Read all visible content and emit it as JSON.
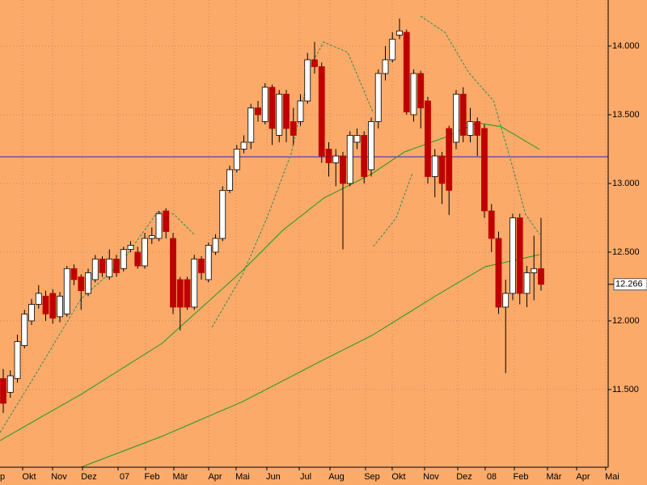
{
  "chart_data": {
    "type": "candlestick",
    "background": "#fbaa6a",
    "grid": true,
    "xlim": [
      -0.46,
      85.49
    ],
    "ylim": [
      10935,
      14335
    ],
    "yticks": [
      {
        "value": 11500,
        "label": "11.500"
      },
      {
        "value": 12000,
        "label": "12.000"
      },
      {
        "value": 12500,
        "label": "12.500"
      },
      {
        "value": 13000,
        "label": "13.000"
      },
      {
        "value": 13500,
        "label": "13.500"
      },
      {
        "value": 14000,
        "label": "14.000"
      }
    ],
    "xticks": [
      {
        "value": -1.03,
        "label": "p"
      },
      {
        "value": 2.74,
        "label": "Okt"
      },
      {
        "value": 6.97,
        "label": "Nov"
      },
      {
        "value": 11.2,
        "label": "Dez"
      },
      {
        "value": 16.23,
        "label": "07"
      },
      {
        "value": 20.11,
        "label": "Feb"
      },
      {
        "value": 24.11,
        "label": "Mär"
      },
      {
        "value": 29.03,
        "label": "Apr"
      },
      {
        "value": 32.91,
        "label": "Mai"
      },
      {
        "value": 37.25,
        "label": "Jun"
      },
      {
        "value": 41.83,
        "label": "Jul"
      },
      {
        "value": 46.17,
        "label": "Aug"
      },
      {
        "value": 51.2,
        "label": "Sep"
      },
      {
        "value": 54.97,
        "label": "Okt"
      },
      {
        "value": 59.54,
        "label": "Nov"
      },
      {
        "value": 64.23,
        "label": "Dez"
      },
      {
        "value": 68.11,
        "label": "08"
      },
      {
        "value": 72.23,
        "label": "Feb"
      },
      {
        "value": 76.91,
        "label": "Mär"
      },
      {
        "value": 81.03,
        "label": "Apr"
      },
      {
        "value": 85.14,
        "label": "Mai"
      }
    ],
    "hline": {
      "value": 13194,
      "color": "#2a2ab8"
    },
    "last_price": {
      "value": 12266,
      "label": "12.266"
    },
    "candles": {
      "up_color": "#ffffff",
      "down_color": "#c00000",
      "x": [
        0,
        1,
        2,
        3,
        4,
        5,
        6,
        7,
        8,
        9,
        10,
        11,
        12,
        13,
        14,
        15,
        16,
        17,
        18,
        19,
        20,
        21,
        22,
        23,
        24,
        25,
        26,
        27,
        28,
        29,
        30,
        31,
        32,
        33,
        34,
        35,
        36,
        37,
        38,
        39,
        40,
        41,
        42,
        43,
        44,
        45,
        46,
        47,
        48,
        49,
        50,
        51,
        52,
        53,
        54,
        55,
        56,
        57,
        58,
        59,
        60,
        61,
        62,
        63,
        64,
        65,
        66,
        67,
        68,
        69,
        70,
        71,
        72,
        73,
        74,
        75,
        76
      ],
      "open": [
        11580,
        11480,
        11580,
        11820,
        12000,
        12120,
        12180,
        12200,
        12030,
        12050,
        12380,
        12320,
        12200,
        12300,
        12450,
        12320,
        12450,
        12380,
        12520,
        12500,
        12400,
        12600,
        12600,
        12800,
        12600,
        12300,
        12300,
        12100,
        12450,
        12300,
        12500,
        12600,
        12950,
        13100,
        13250,
        13300,
        13550,
        13450,
        13700,
        13350,
        13650,
        13450,
        13450,
        13600,
        13900,
        13850,
        13250,
        13150,
        13200,
        13000,
        13300,
        13350,
        13100,
        13450,
        13800,
        13900,
        14080,
        14100,
        13500,
        13800,
        13600,
        13050,
        13200,
        13400,
        13300,
        13650,
        13350,
        13450,
        13400,
        12800,
        12600,
        12100,
        12200,
        12750,
        12200,
        12350,
        12380
      ],
      "high": [
        11650,
        11640,
        11900,
        12080,
        12160,
        12260,
        12220,
        12230,
        12210,
        12400,
        12410,
        12340,
        12380,
        12480,
        12470,
        12520,
        12480,
        12540,
        12580,
        12540,
        12640,
        12680,
        12800,
        12820,
        12640,
        12320,
        12320,
        12480,
        12470,
        12570,
        12630,
        12980,
        13130,
        13280,
        13350,
        13580,
        13600,
        13730,
        13720,
        13680,
        13680,
        13550,
        13650,
        13950,
        14030,
        13880,
        13300,
        13250,
        13230,
        13380,
        13400,
        13380,
        13480,
        13830,
        14000,
        14100,
        14200,
        14120,
        13830,
        13820,
        13630,
        13250,
        13230,
        13420,
        13680,
        13700,
        13550,
        13480,
        13430,
        12850,
        12650,
        12300,
        12780,
        12780,
        12400,
        12620,
        12750
      ],
      "low": [
        11330,
        11440,
        11550,
        11800,
        11970,
        12090,
        12000,
        11980,
        11990,
        12030,
        12260,
        12080,
        12180,
        12280,
        12320,
        12300,
        12320,
        12360,
        12500,
        12380,
        12380,
        12560,
        12580,
        12600,
        12050,
        11930,
        12080,
        12080,
        12300,
        12280,
        12480,
        12580,
        12930,
        13080,
        13220,
        13250,
        13450,
        13430,
        13280,
        13300,
        13300,
        13280,
        13420,
        13580,
        13800,
        13150,
        13050,
        12980,
        12520,
        12980,
        13250,
        13000,
        13050,
        13400,
        13750,
        13880,
        14050,
        13500,
        13450,
        13400,
        13000,
        12900,
        12850,
        12770,
        13250,
        13300,
        13300,
        13200,
        12750,
        12500,
        12050,
        11620,
        12150,
        12120,
        12100,
        12150,
        12220
      ],
      "close": [
        11400,
        11600,
        11850,
        12050,
        12120,
        12200,
        12050,
        12020,
        12180,
        12380,
        12300,
        12220,
        12350,
        12450,
        12350,
        12450,
        12350,
        12520,
        12550,
        12400,
        12600,
        12620,
        12780,
        12650,
        12100,
        12100,
        12100,
        12450,
        12350,
        12550,
        12600,
        12950,
        13100,
        13250,
        13300,
        13550,
        13500,
        13700,
        13400,
        13650,
        13400,
        13350,
        13600,
        13900,
        13850,
        13200,
        13150,
        13200,
        13000,
        13350,
        13350,
        13050,
        13450,
        13800,
        13900,
        14050,
        14110,
        13520,
        13800,
        13550,
        13050,
        13200,
        13000,
        12950,
        13650,
        13350,
        13450,
        13350,
        12800,
        12600,
        12100,
        12200,
        12750,
        12200,
        12350,
        12380,
        12266
      ]
    },
    "lines": [
      {
        "color": "#1d9a1d",
        "dashed": false,
        "x": [
          -0.46,
          10.97,
          22.4,
          33.8,
          39.5,
          45.3,
          52.1,
          56.7,
          62.4,
          67.0,
          70.4,
          75.8
        ],
        "values": [
          11129,
          11465,
          11835,
          12365,
          12659,
          12894,
          13071,
          13229,
          13335,
          13441,
          13412,
          13247
        ]
      },
      {
        "color": "#1d9a1d",
        "dashed": false,
        "x": [
          10.97,
          22.4,
          33.8,
          45.3,
          52.1,
          61.3,
          68.1,
          75.8
        ],
        "values": [
          10935,
          11159,
          11412,
          11718,
          11894,
          12188,
          12394,
          12482
        ]
      },
      {
        "color": "#2f8a5a",
        "dashed": true,
        "x": [
          -0.46,
          4.11,
          10.97,
          16.68,
          21.83,
          24.11,
          26.97,
          null,
          29.5,
          33.8,
          37.25,
          40.7,
          43.5,
          45.3,
          48.7,
          52.3,
          null,
          52.3,
          55.5,
          57.8,
          null,
          58.97,
          62.4,
          65.8,
          69.3,
          72.1,
          73.8,
          75.8
        ],
        "values": [
          11188,
          11571,
          12159,
          12424,
          12794,
          12776,
          12629,
          null,
          11953,
          12335,
          12747,
          13218,
          13865,
          14029,
          13953,
          13512,
          null,
          12541,
          12747,
          13071,
          null,
          14218,
          14100,
          13806,
          13600,
          13100,
          12776,
          12629
        ]
      }
    ]
  }
}
